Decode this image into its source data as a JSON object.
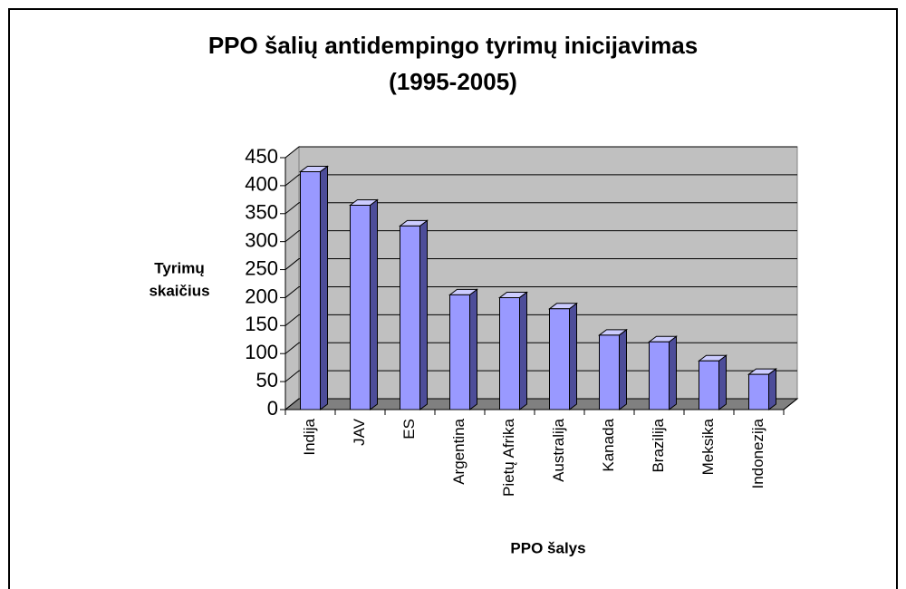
{
  "chart_data": {
    "type": "bar3d",
    "title": [
      "PPO šalių antidempingo tyrimų inicijavimas",
      "(1995-2005)"
    ],
    "y_label": [
      "Tyrimų",
      "skaičius"
    ],
    "x_label": "PPO šalys",
    "categories": [
      "Indija",
      "JAV",
      "ES",
      "Argentina",
      "Pietų Afrika",
      "Australija",
      "Kanada",
      "Brazilija",
      "Meksika",
      "Indonezija"
    ],
    "values": [
      425,
      365,
      328,
      205,
      200,
      180,
      133,
      121,
      87,
      63
    ],
    "color": "#9999ff",
    "ylim": [
      0,
      450
    ],
    "yticks": [
      0,
      50,
      100,
      150,
      200,
      250,
      300,
      350,
      400,
      450
    ],
    "grid": true
  }
}
